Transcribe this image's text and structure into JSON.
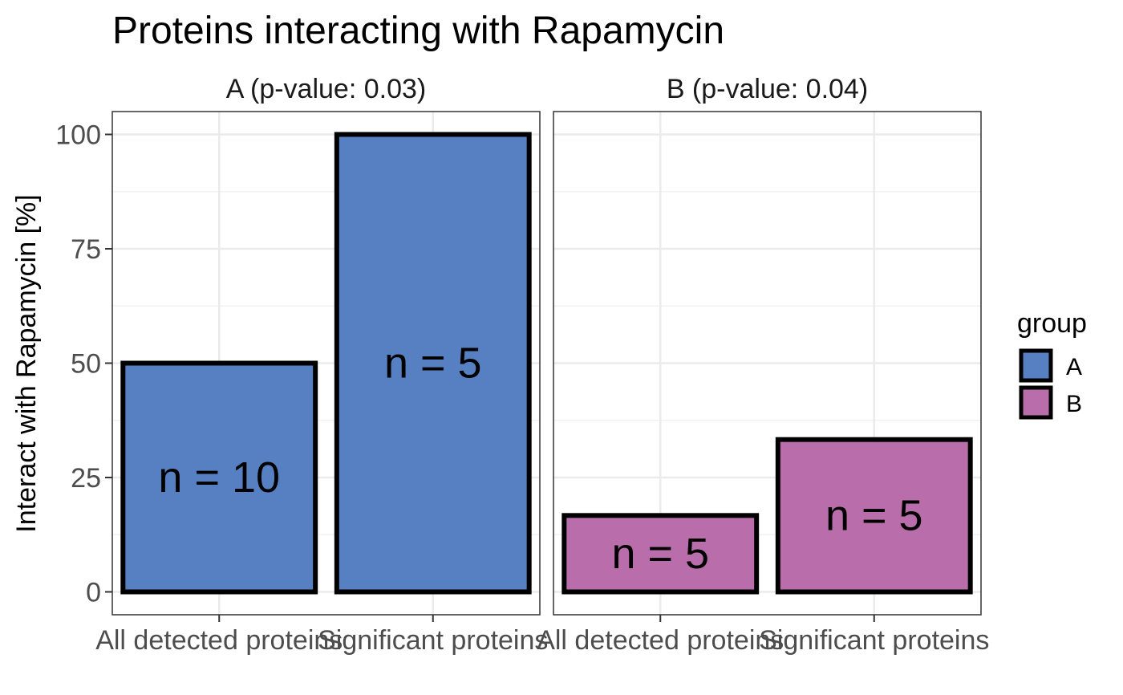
{
  "chart_data": {
    "type": "bar",
    "title": "Proteins interacting with Rapamycin",
    "ylabel": "Interact with Rapamycin [%]",
    "xlabel": "",
    "ylim": [
      -5,
      105
    ],
    "yticks": [
      0,
      25,
      50,
      75,
      100
    ],
    "categories": [
      "All detected proteins",
      "Significant proteins"
    ],
    "grid": true,
    "legend": {
      "title": "group",
      "position": "right",
      "entries": [
        {
          "label": "A",
          "color": "#5680C2"
        },
        {
          "label": "B",
          "color": "#B96EAB"
        }
      ]
    },
    "panels": [
      {
        "strip": "A (p-value: 0.03)",
        "group": "A",
        "color": "#5680C2",
        "values": [
          50,
          100
        ],
        "labels": [
          "n = 10",
          "n = 5"
        ]
      },
      {
        "strip": "B (p-value: 0.04)",
        "group": "B",
        "color": "#B96EAB",
        "values": [
          16.7,
          33.3
        ],
        "labels": [
          "n = 5",
          "n = 5"
        ]
      }
    ]
  }
}
